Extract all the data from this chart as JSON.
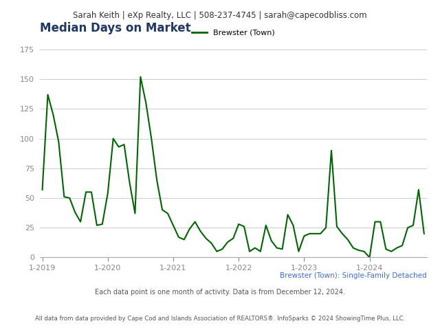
{
  "header_text": "Sarah Keith | eXp Realty, LLC | 508-237-4745 | sarah@capecodbliss.com",
  "title": "Median Days on Market",
  "legend_label": "Brewster (Town)",
  "subtitle": "Brewster (Town): Single-Family Detached",
  "note1": "Each data point is one month of activity. Data is from December 12, 2024.",
  "note2": "All data from data provided by Cape Cod and Islands Association of REALTORS®. InfoSparks © 2024 ShowingTime Plus, LLC.",
  "line_color": "#006400",
  "title_color": "#1F3864",
  "subtitle_color": "#4169E1",
  "header_bg": "#E8E8E8",
  "chart_bg": "#FFFFFF",
  "ylim": [
    0,
    175
  ],
  "yticks": [
    0,
    25,
    50,
    75,
    100,
    125,
    150,
    175
  ],
  "values": [
    57,
    137,
    120,
    97,
    51,
    50,
    38,
    30,
    55,
    55,
    27,
    28,
    54,
    100,
    93,
    95,
    63,
    37,
    152,
    130,
    100,
    65,
    40,
    37,
    27,
    17,
    15,
    24,
    30,
    22,
    16,
    12,
    5,
    7,
    13,
    16,
    28,
    26,
    5,
    8,
    5,
    27,
    14,
    8,
    7,
    36,
    27,
    5,
    18,
    20,
    20,
    20,
    25,
    90,
    26,
    20,
    15,
    8,
    6,
    5,
    0,
    30,
    30,
    7,
    5,
    8,
    10,
    25,
    27,
    57,
    20
  ],
  "xtick_positions": [
    0,
    12,
    24,
    36,
    48,
    60
  ],
  "xtick_labels": [
    "1-2019",
    "1-2020",
    "1-2021",
    "1-2022",
    "1-2023",
    "1-2024"
  ]
}
